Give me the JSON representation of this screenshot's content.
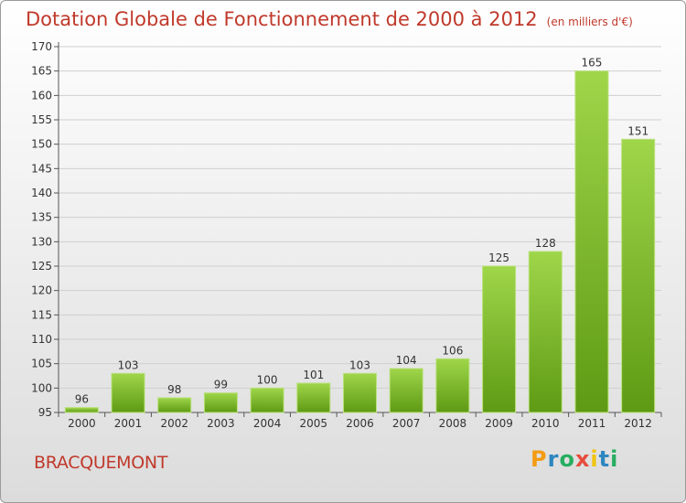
{
  "title": "Dotation Globale de Fonctionnement de 2000 à 2012",
  "subtitle": "(en milliers d'€)",
  "town": "BRACQUEMONT",
  "logo": {
    "letters": [
      "P",
      "r",
      "o",
      "x",
      "i",
      "t",
      "i"
    ],
    "colors": [
      "#f39c12",
      "#2e86c1",
      "#27ae60",
      "#e74c3c",
      "#f1c40f",
      "#2e86c1",
      "#27ae60"
    ]
  },
  "chart_data": {
    "type": "bar",
    "categories": [
      "2000",
      "2001",
      "2002",
      "2003",
      "2004",
      "2005",
      "2006",
      "2007",
      "2008",
      "2009",
      "2010",
      "2011",
      "2012"
    ],
    "values": [
      96,
      103,
      98,
      99,
      100,
      101,
      103,
      104,
      106,
      125,
      128,
      165,
      151
    ],
    "ylim": [
      95,
      170
    ],
    "yticks": [
      95,
      100,
      105,
      110,
      115,
      120,
      125,
      130,
      135,
      140,
      145,
      150,
      155,
      160,
      165,
      170
    ],
    "grid": true,
    "bar_color": "#7dbb2e"
  }
}
